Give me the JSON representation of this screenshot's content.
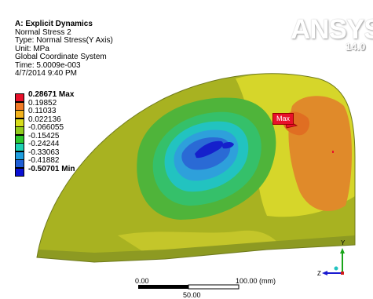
{
  "info": {
    "title": "A: Explicit Dynamics",
    "lines": [
      "Normal Stress 2",
      "Type: Normal Stress(Y Axis)",
      "Unit: MPa",
      "Global Coordinate System",
      "Time: 5.0009e-003",
      "4/7/2014 9:40 PM"
    ]
  },
  "legend": {
    "max_label": "0.28671 Max",
    "min_label": "-0.50701 Min",
    "entries": [
      "0.28671 Max",
      "0.19852",
      "0.11033",
      "0.022136",
      "-0.066055",
      "-0.15425",
      "-0.24244",
      "-0.33063",
      "-0.41882",
      "-0.50701 Min"
    ],
    "colors": [
      "#e8112b",
      "#f27a26",
      "#f2b21c",
      "#d7dc1a",
      "#92cb1c",
      "#2ec82e",
      "#1ed1b3",
      "#1e9ee0",
      "#1f5fd7",
      "#0a10d4"
    ]
  },
  "logo": {
    "text": "ANSYS",
    "version": "14.0"
  },
  "probe": {
    "label": "Max"
  },
  "scale": {
    "left": "0.00",
    "right": "100.00 (mm)",
    "middle": "50.00"
  },
  "triad": {
    "y": "Y",
    "z": "Z"
  }
}
